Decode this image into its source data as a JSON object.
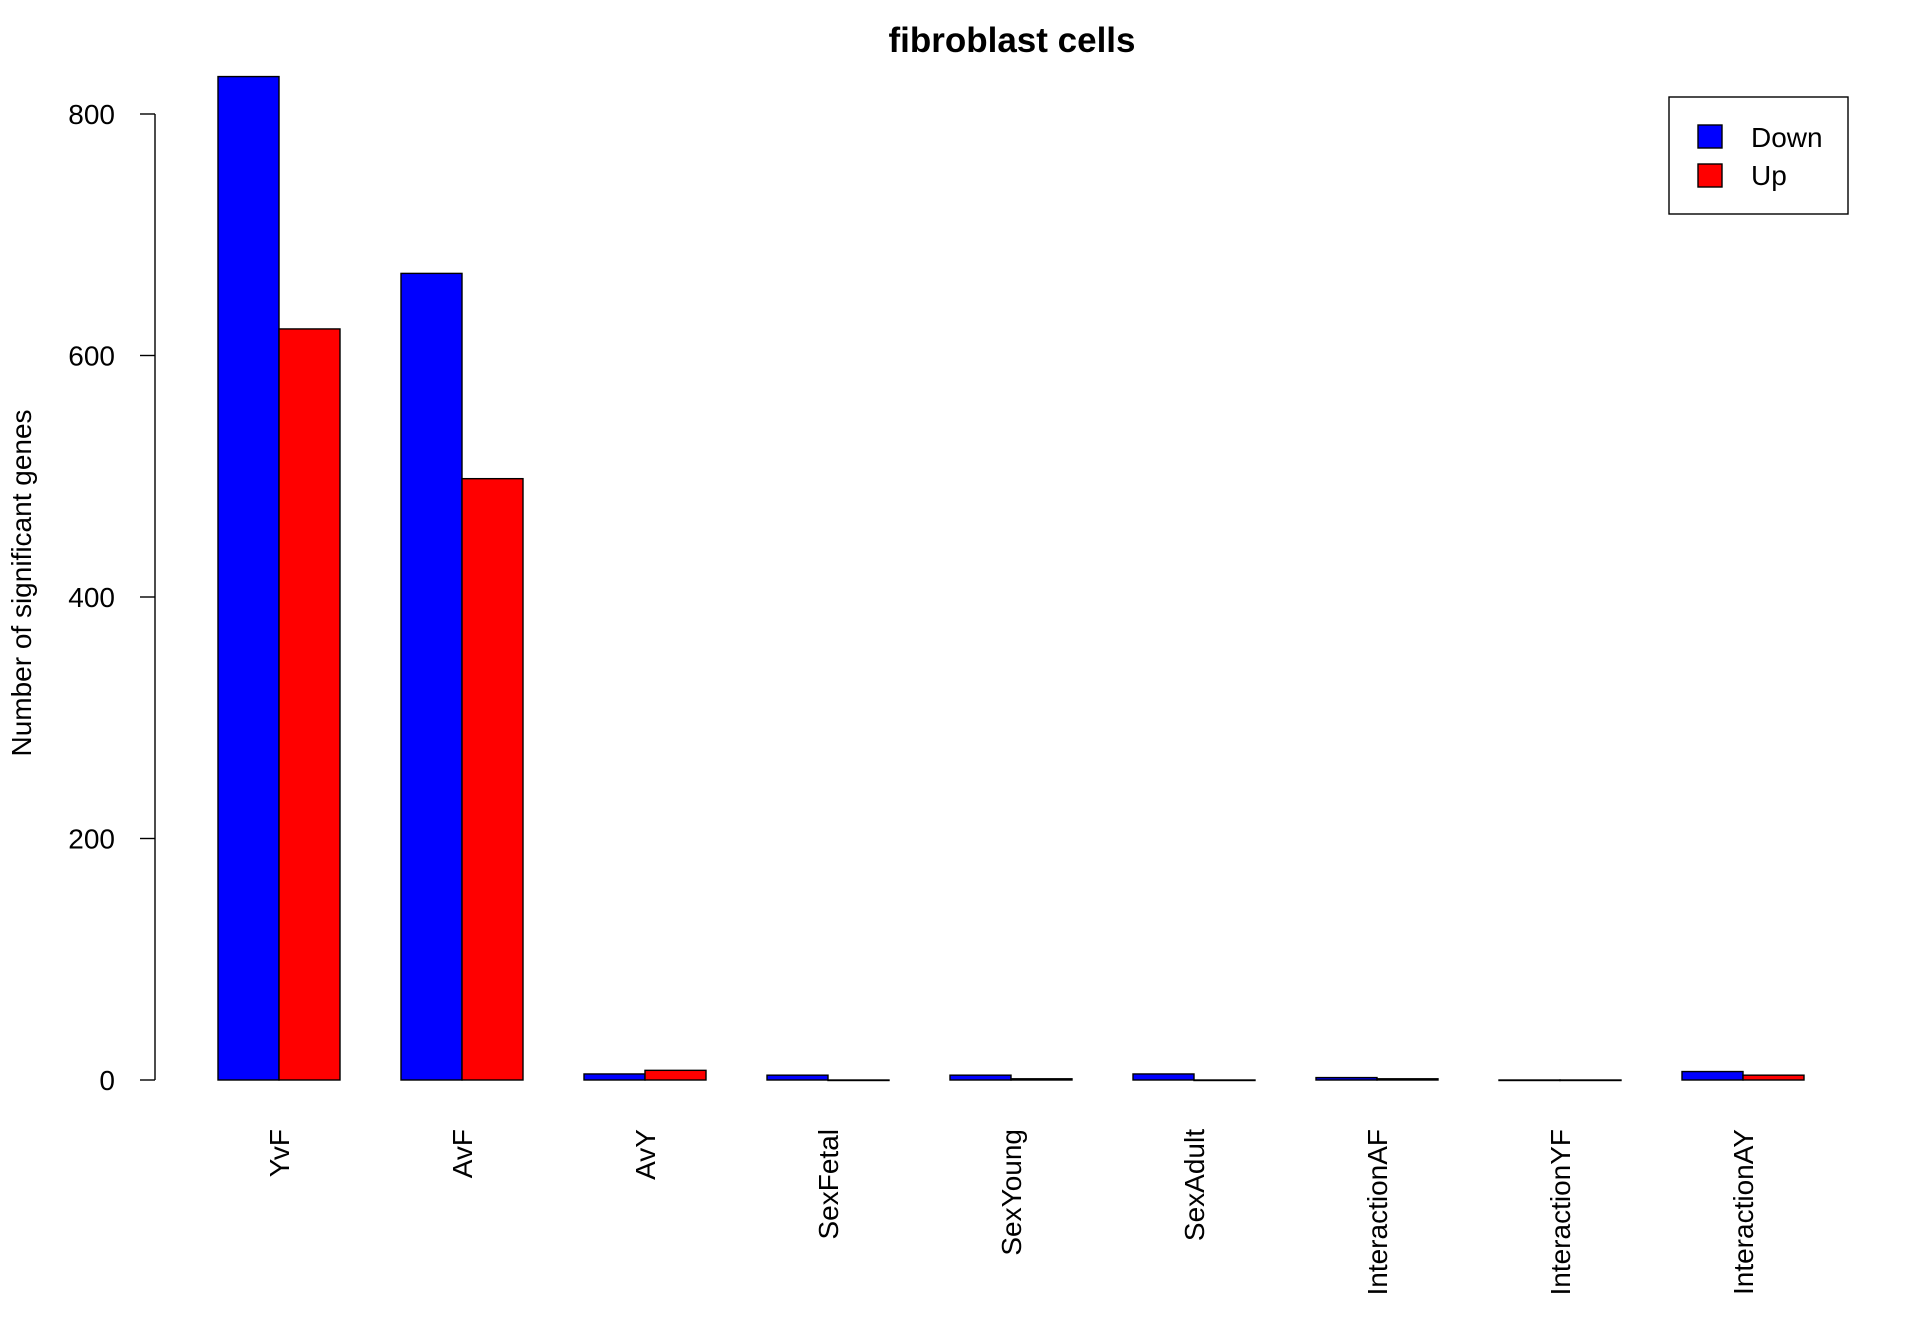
{
  "chart_data": {
    "type": "bar",
    "title": "fibroblast cells",
    "xlabel": "",
    "ylabel": "Number of significant genes",
    "categories": [
      "YvF",
      "AvF",
      "AvY",
      "SexFetal",
      "SexYoung",
      "SexAdult",
      "InteractionAF",
      "InteractionYF",
      "InteractionAY"
    ],
    "series": [
      {
        "name": "Down",
        "color": "#0000FF",
        "values": [
          831,
          668,
          5,
          4,
          4,
          5,
          2,
          0,
          7
        ]
      },
      {
        "name": "Up",
        "color": "#FF0000",
        "values": [
          622,
          498,
          8,
          0,
          1,
          0,
          1,
          0,
          4
        ]
      }
    ],
    "yticks": [
      0,
      200,
      400,
      600,
      800
    ],
    "ylim": [
      0,
      831
    ],
    "grid": false,
    "legend": "top-right"
  }
}
